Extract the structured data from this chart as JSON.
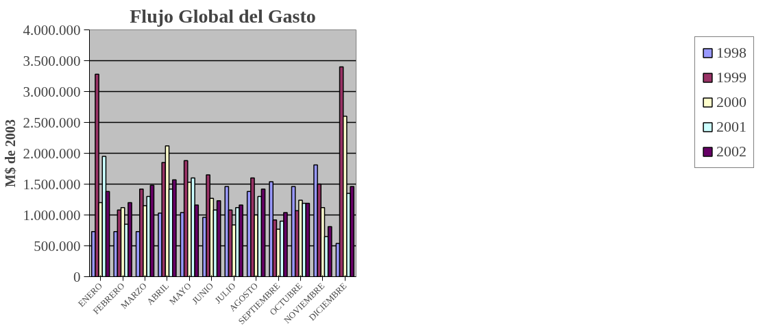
{
  "chart_data": {
    "type": "bar",
    "title": "Flujo Global del Gasto",
    "ylabel": "M$ de 2003",
    "categories": [
      "ENERO",
      "FEBRERO",
      "MARZO",
      "ABRIL",
      "MAYO",
      "JUNIO",
      "JULIO",
      "AGOSTO",
      "SEPTIEMBRE",
      "OCTUBRE",
      "NOVIEMBRE",
      "DICIEMBRE"
    ],
    "series": [
      {
        "name": "1998",
        "color": "#9999ff",
        "values": [
          730000,
          730000,
          730000,
          1030000,
          1040000,
          960000,
          1460000,
          1380000,
          1540000,
          1460000,
          1810000,
          540000
        ]
      },
      {
        "name": "1999",
        "color": "#993366",
        "values": [
          3280000,
          1080000,
          1420000,
          1850000,
          1880000,
          1650000,
          1080000,
          1600000,
          920000,
          1070000,
          1500000,
          3400000
        ]
      },
      {
        "name": "2000",
        "color": "#ffffcc",
        "values": [
          1200000,
          1120000,
          1150000,
          2120000,
          1530000,
          1270000,
          840000,
          1000000,
          770000,
          1240000,
          1120000,
          2600000
        ]
      },
      {
        "name": "2001",
        "color": "#ccffff",
        "values": [
          1950000,
          850000,
          1300000,
          1420000,
          1600000,
          1080000,
          1120000,
          1300000,
          900000,
          1190000,
          650000,
          1350000
        ]
      },
      {
        "name": "2002",
        "color": "#660066",
        "values": [
          1380000,
          1200000,
          1480000,
          1570000,
          1160000,
          1230000,
          1160000,
          1420000,
          1040000,
          1190000,
          810000,
          1460000
        ]
      }
    ],
    "ylim": [
      0,
      4000000
    ],
    "yticks": [
      {
        "value": 0,
        "label": "0"
      },
      {
        "value": 500000,
        "label": "500.000"
      },
      {
        "value": 1000000,
        "label": "1.000.000"
      },
      {
        "value": 1500000,
        "label": "1.500.000"
      },
      {
        "value": 2000000,
        "label": "2.000.000"
      },
      {
        "value": 2500000,
        "label": "2.500.000"
      },
      {
        "value": 3000000,
        "label": "3.000.000"
      },
      {
        "value": 3500000,
        "label": "3.500.000"
      },
      {
        "value": 4000000,
        "label": "4.000.000"
      }
    ],
    "grid": "y",
    "legend": "right"
  }
}
